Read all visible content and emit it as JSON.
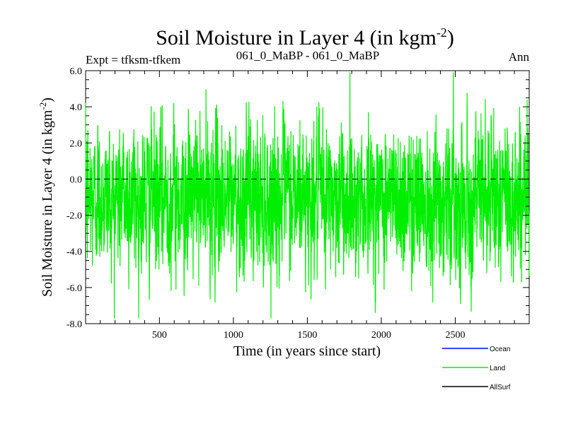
{
  "chart_data": {
    "type": "line",
    "title": "Soil Moisture in Layer 4 (in kgm",
    "title_sup": "-2",
    "title_tail": ")",
    "left_subtitle": "Expt = tfksm-tfkem",
    "center_subtitle": "061_0_MaBP - 061_0_MaBP",
    "right_subtitle": "Ann",
    "xlabel": "Time (in years since start)",
    "ylabel": "Soil Moisture in Layer 4 (in kgm",
    "ylabel_sup": "-2",
    "ylabel_tail": ")",
    "xlim": [
      1,
      3000
    ],
    "ylim": [
      -8,
      6
    ],
    "x_ticks": [
      500,
      1000,
      1500,
      2000,
      2500
    ],
    "x_tick_labels": [
      "500",
      "1000",
      "1500",
      "2000",
      "2500"
    ],
    "y_ticks": [
      -8,
      -6,
      -4,
      -2,
      0,
      2,
      4,
      6
    ],
    "y_tick_labels": [
      "-8.0",
      "-6.0",
      "-4.0",
      "-2.0",
      "0.0",
      "2.0",
      "4.0",
      "6.0"
    ],
    "reference_line": {
      "y": 0,
      "style": "dashed",
      "color": "#000000"
    },
    "n_points": 3000,
    "approx_mean": -1.0,
    "approx_std": 2.0,
    "approx_max": 5.9,
    "approx_min": -7.7,
    "legend": [
      {
        "name": "Ocean",
        "color": "#0000ff"
      },
      {
        "name": "Land",
        "color": "#00ee00"
      },
      {
        "name": "AllSurf",
        "color": "#000000"
      }
    ],
    "legend_position": "bottom-right",
    "series": [
      {
        "name": "Land",
        "color": "#00ee00",
        "summary": "annual land soil moisture anomaly fluctuating around about -1, range roughly -7.7 to 5.9"
      }
    ]
  }
}
